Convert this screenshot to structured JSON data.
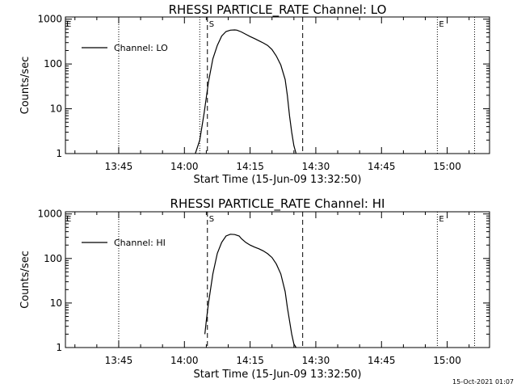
{
  "timestamp": "15-Oct-2021 01:07",
  "chart_data": [
    {
      "type": "line",
      "title": "RHESSI PARTICLE_RATE Channel: LO",
      "xlabel": "Start Time (15-Jun-09 13:32:50)",
      "ylabel": "Counts/sec",
      "yscale": "log",
      "ylim": [
        1,
        1000
      ],
      "yticks": [
        "1",
        "10",
        "100",
        "1000"
      ],
      "xticks": [
        "13:45",
        "14:00",
        "14:15",
        "14:30",
        "14:45",
        "15:00"
      ],
      "grid": false,
      "legend_position": "top-left",
      "series": [
        {
          "name": "Channel: LO",
          "x": [
            "14:02:30",
            "14:03:30",
            "14:04:30",
            "14:05:30",
            "14:06:30",
            "14:07:30",
            "14:08:30",
            "14:09:30",
            "14:10:30",
            "14:11:30",
            "14:12:00",
            "14:13:00",
            "14:14:00",
            "14:15:00",
            "14:16:00",
            "14:17:00",
            "14:18:00",
            "14:19:00",
            "14:20:00",
            "14:21:00",
            "14:22:00",
            "14:23:00",
            "14:23:30",
            "14:24:00",
            "14:24:30",
            "14:25:00",
            "14:25:30"
          ],
          "y": [
            1,
            2,
            8,
            40,
            130,
            260,
            420,
            530,
            570,
            575,
            570,
            520,
            460,
            410,
            370,
            330,
            295,
            260,
            210,
            150,
            95,
            45,
            20,
            7,
            3,
            1.5,
            1
          ]
        }
      ],
      "markers": [
        {
          "time": "13:45:00",
          "style": "dotted",
          "label": ""
        },
        {
          "time": "14:03:30",
          "style": "dotted",
          "label": ""
        },
        {
          "time": "14:05:15",
          "style": "dashed",
          "label": "S"
        },
        {
          "time": "14:27:00",
          "style": "dashed",
          "label": ""
        },
        {
          "time": "14:57:45",
          "style": "dotted",
          "label": "E"
        },
        {
          "time": "15:06:15",
          "style": "dotted",
          "label": ""
        }
      ],
      "corner_marker": "E"
    },
    {
      "type": "line",
      "title": "RHESSI PARTICLE_RATE Channel: HI",
      "xlabel": "Start Time (15-Jun-09 13:32:50)",
      "ylabel": "Counts/sec",
      "yscale": "log",
      "ylim": [
        1,
        1000
      ],
      "yticks": [
        "1",
        "10",
        "100",
        "1000"
      ],
      "xticks": [
        "13:45",
        "14:00",
        "14:15",
        "14:30",
        "14:45",
        "15:00"
      ],
      "grid": false,
      "legend_position": "top-left",
      "series": [
        {
          "name": "Channel: HI",
          "x": [
            "14:04:40",
            "14:05:00",
            "14:05:30",
            "14:06:30",
            "14:07:30",
            "14:08:30",
            "14:09:30",
            "14:10:30",
            "14:11:30",
            "14:12:30",
            "14:13:00",
            "14:14:00",
            "14:15:00",
            "14:16:00",
            "14:17:00",
            "14:18:00",
            "14:19:00",
            "14:20:00",
            "14:21:00",
            "14:22:00",
            "14:23:00",
            "14:23:30",
            "14:24:00",
            "14:24:30",
            "14:25:00",
            "14:25:30"
          ],
          "y": [
            2,
            4,
            10,
            45,
            130,
            230,
            320,
            350,
            345,
            320,
            280,
            230,
            200,
            180,
            165,
            148,
            128,
            105,
            75,
            45,
            18,
            8,
            4,
            2,
            1.2,
            1
          ]
        }
      ],
      "markers": [
        {
          "time": "13:45:00",
          "style": "dotted",
          "label": ""
        },
        {
          "time": "14:05:15",
          "style": "dashed",
          "label": "S"
        },
        {
          "time": "14:27:00",
          "style": "dashed",
          "label": ""
        },
        {
          "time": "14:57:45",
          "style": "dotted",
          "label": "E"
        },
        {
          "time": "15:06:15",
          "style": "dotted",
          "label": ""
        }
      ],
      "corner_marker": "E"
    }
  ]
}
